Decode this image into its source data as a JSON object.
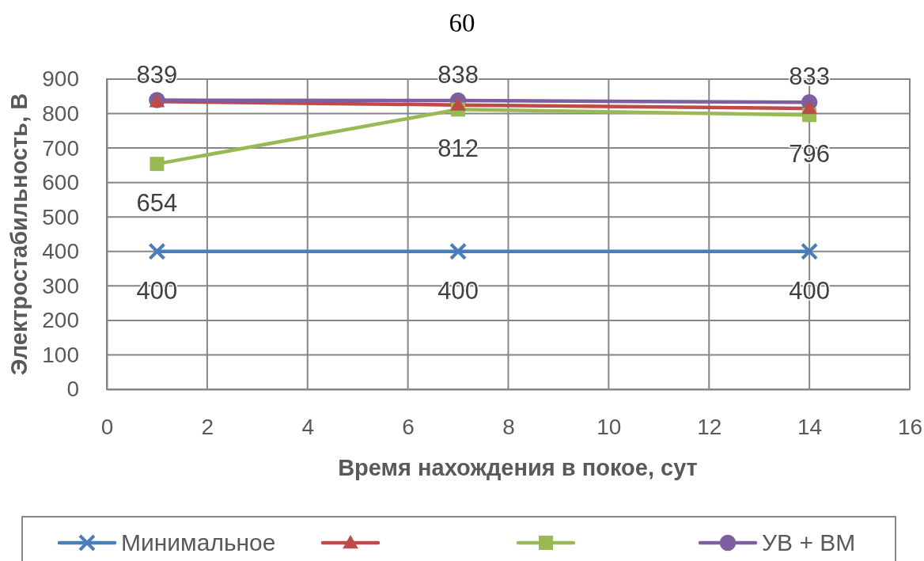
{
  "chart_data": {
    "type": "line",
    "annotations": [
      "60"
    ],
    "xlabel": "Время нахождения в покое, сут",
    "ylabel": "Электростабильность,  В",
    "xlim": [
      0,
      16
    ],
    "xticks": [
      0,
      2,
      4,
      6,
      8,
      10,
      12,
      14,
      16
    ],
    "ylim": [
      0,
      900
    ],
    "yticks": [
      0,
      100,
      200,
      300,
      400,
      500,
      600,
      700,
      800,
      900
    ],
    "grid": true,
    "legend": "bottom",
    "x": [
      1,
      7,
      14
    ],
    "series": [
      {
        "name": "Минимальное",
        "color": "#4a7ebb",
        "marker": "cross",
        "values": [
          400,
          400,
          400
        ],
        "value_labels": [
          "400",
          "400",
          "400"
        ]
      },
      {
        "color": "#be4b48",
        "marker": "triangle",
        "values": [
          835,
          825,
          815
        ]
      },
      {
        "color": "#98b954",
        "marker": "square",
        "values": [
          654,
          812,
          796
        ],
        "value_labels": [
          "654",
          "812",
          "796"
        ]
      },
      {
        "name": "УВ + ВМ",
        "color": "#7d5fa0",
        "marker": "circle",
        "values": [
          839,
          838,
          833
        ],
        "value_labels": [
          "839",
          "838",
          "833"
        ]
      }
    ]
  }
}
